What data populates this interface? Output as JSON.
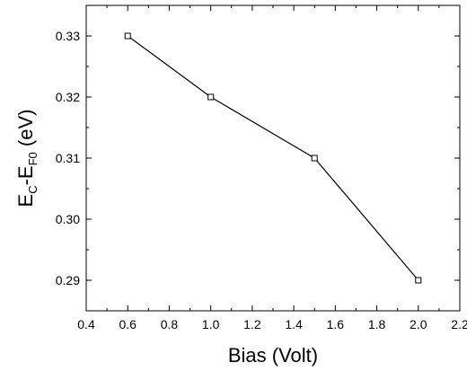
{
  "chart_data": {
    "type": "line",
    "title": "",
    "xlabel": "Bias (Volt)",
    "ylabel": {
      "main": "E",
      "sub1": "C",
      "mid": "-E",
      "sub2": "F0",
      "unit": " (eV)"
    },
    "xlim": [
      0.4,
      2.2
    ],
    "ylim": [
      0.285,
      0.335
    ],
    "xticks": [
      "0.4",
      "0.6",
      "0.8",
      "1.0",
      "1.2",
      "1.4",
      "1.6",
      "1.8",
      "2.0",
      "2.2"
    ],
    "yticks": [
      "0.29",
      "0.30",
      "0.31",
      "0.32",
      "0.33"
    ],
    "grid": false,
    "legend": "none",
    "series": [
      {
        "x": [
          0.6,
          1.0,
          1.5,
          2.0
        ],
        "y": [
          0.33,
          0.32,
          0.31,
          0.29
        ],
        "marker": "open-square",
        "color": "#000000"
      }
    ]
  }
}
